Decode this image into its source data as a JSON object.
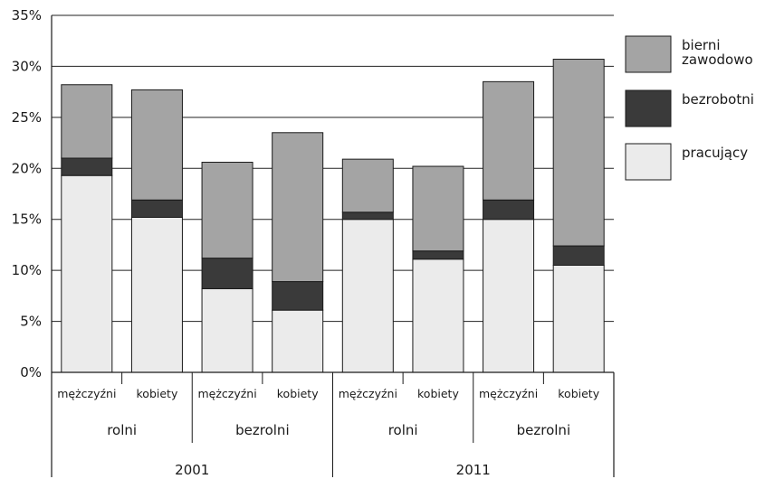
{
  "chart_data": {
    "type": "bar",
    "stacked": true,
    "y_ticks": [
      "0%",
      "5%",
      "10%",
      "15%",
      "20%",
      "25%",
      "30%",
      "35%"
    ],
    "ylim": [
      0,
      35
    ],
    "grid": true,
    "legend_position": "right",
    "categories": [
      {
        "label": "mężczyźni",
        "group": "rolni",
        "year": "2001"
      },
      {
        "label": "kobiety",
        "group": "rolni",
        "year": "2001"
      },
      {
        "label": "mężczyźni",
        "group": "bezrolni",
        "year": "2001"
      },
      {
        "label": "kobiety",
        "group": "bezrolni",
        "year": "2001"
      },
      {
        "label": "mężczyźni",
        "group": "rolni",
        "year": "2011"
      },
      {
        "label": "kobiety",
        "group": "rolni",
        "year": "2011"
      },
      {
        "label": "mężczyźni",
        "group": "bezrolni",
        "year": "2011"
      },
      {
        "label": "kobiety",
        "group": "bezrolni",
        "year": "2011"
      }
    ],
    "groups": [
      {
        "label": "rolni",
        "year": "2001"
      },
      {
        "label": "bezrolni",
        "year": "2001"
      },
      {
        "label": "rolni",
        "year": "2011"
      },
      {
        "label": "bezrolni",
        "year": "2011"
      }
    ],
    "years": [
      "2001",
      "2011"
    ],
    "series": [
      {
        "name": "pracujący",
        "color": "#ebebeb",
        "values": [
          19.3,
          15.2,
          8.2,
          6.1,
          15.0,
          11.1,
          15.0,
          10.5
        ]
      },
      {
        "name": "bezrobotni",
        "color": "#3a3a3a",
        "values": [
          1.7,
          1.7,
          3.0,
          2.8,
          0.7,
          0.8,
          1.9,
          1.9
        ]
      },
      {
        "name": "bierni zawodowo",
        "color": "#a4a4a4",
        "values": [
          7.2,
          10.8,
          9.4,
          14.6,
          5.2,
          8.3,
          11.6,
          18.3
        ]
      }
    ],
    "legend": [
      {
        "name_lines": [
          "bierni",
          "zawodowo"
        ],
        "color": "#a4a4a4"
      },
      {
        "name_lines": [
          "bezrobotni"
        ],
        "color": "#3a3a3a"
      },
      {
        "name_lines": [
          "pracujący"
        ],
        "color": "#ebebeb"
      }
    ]
  }
}
